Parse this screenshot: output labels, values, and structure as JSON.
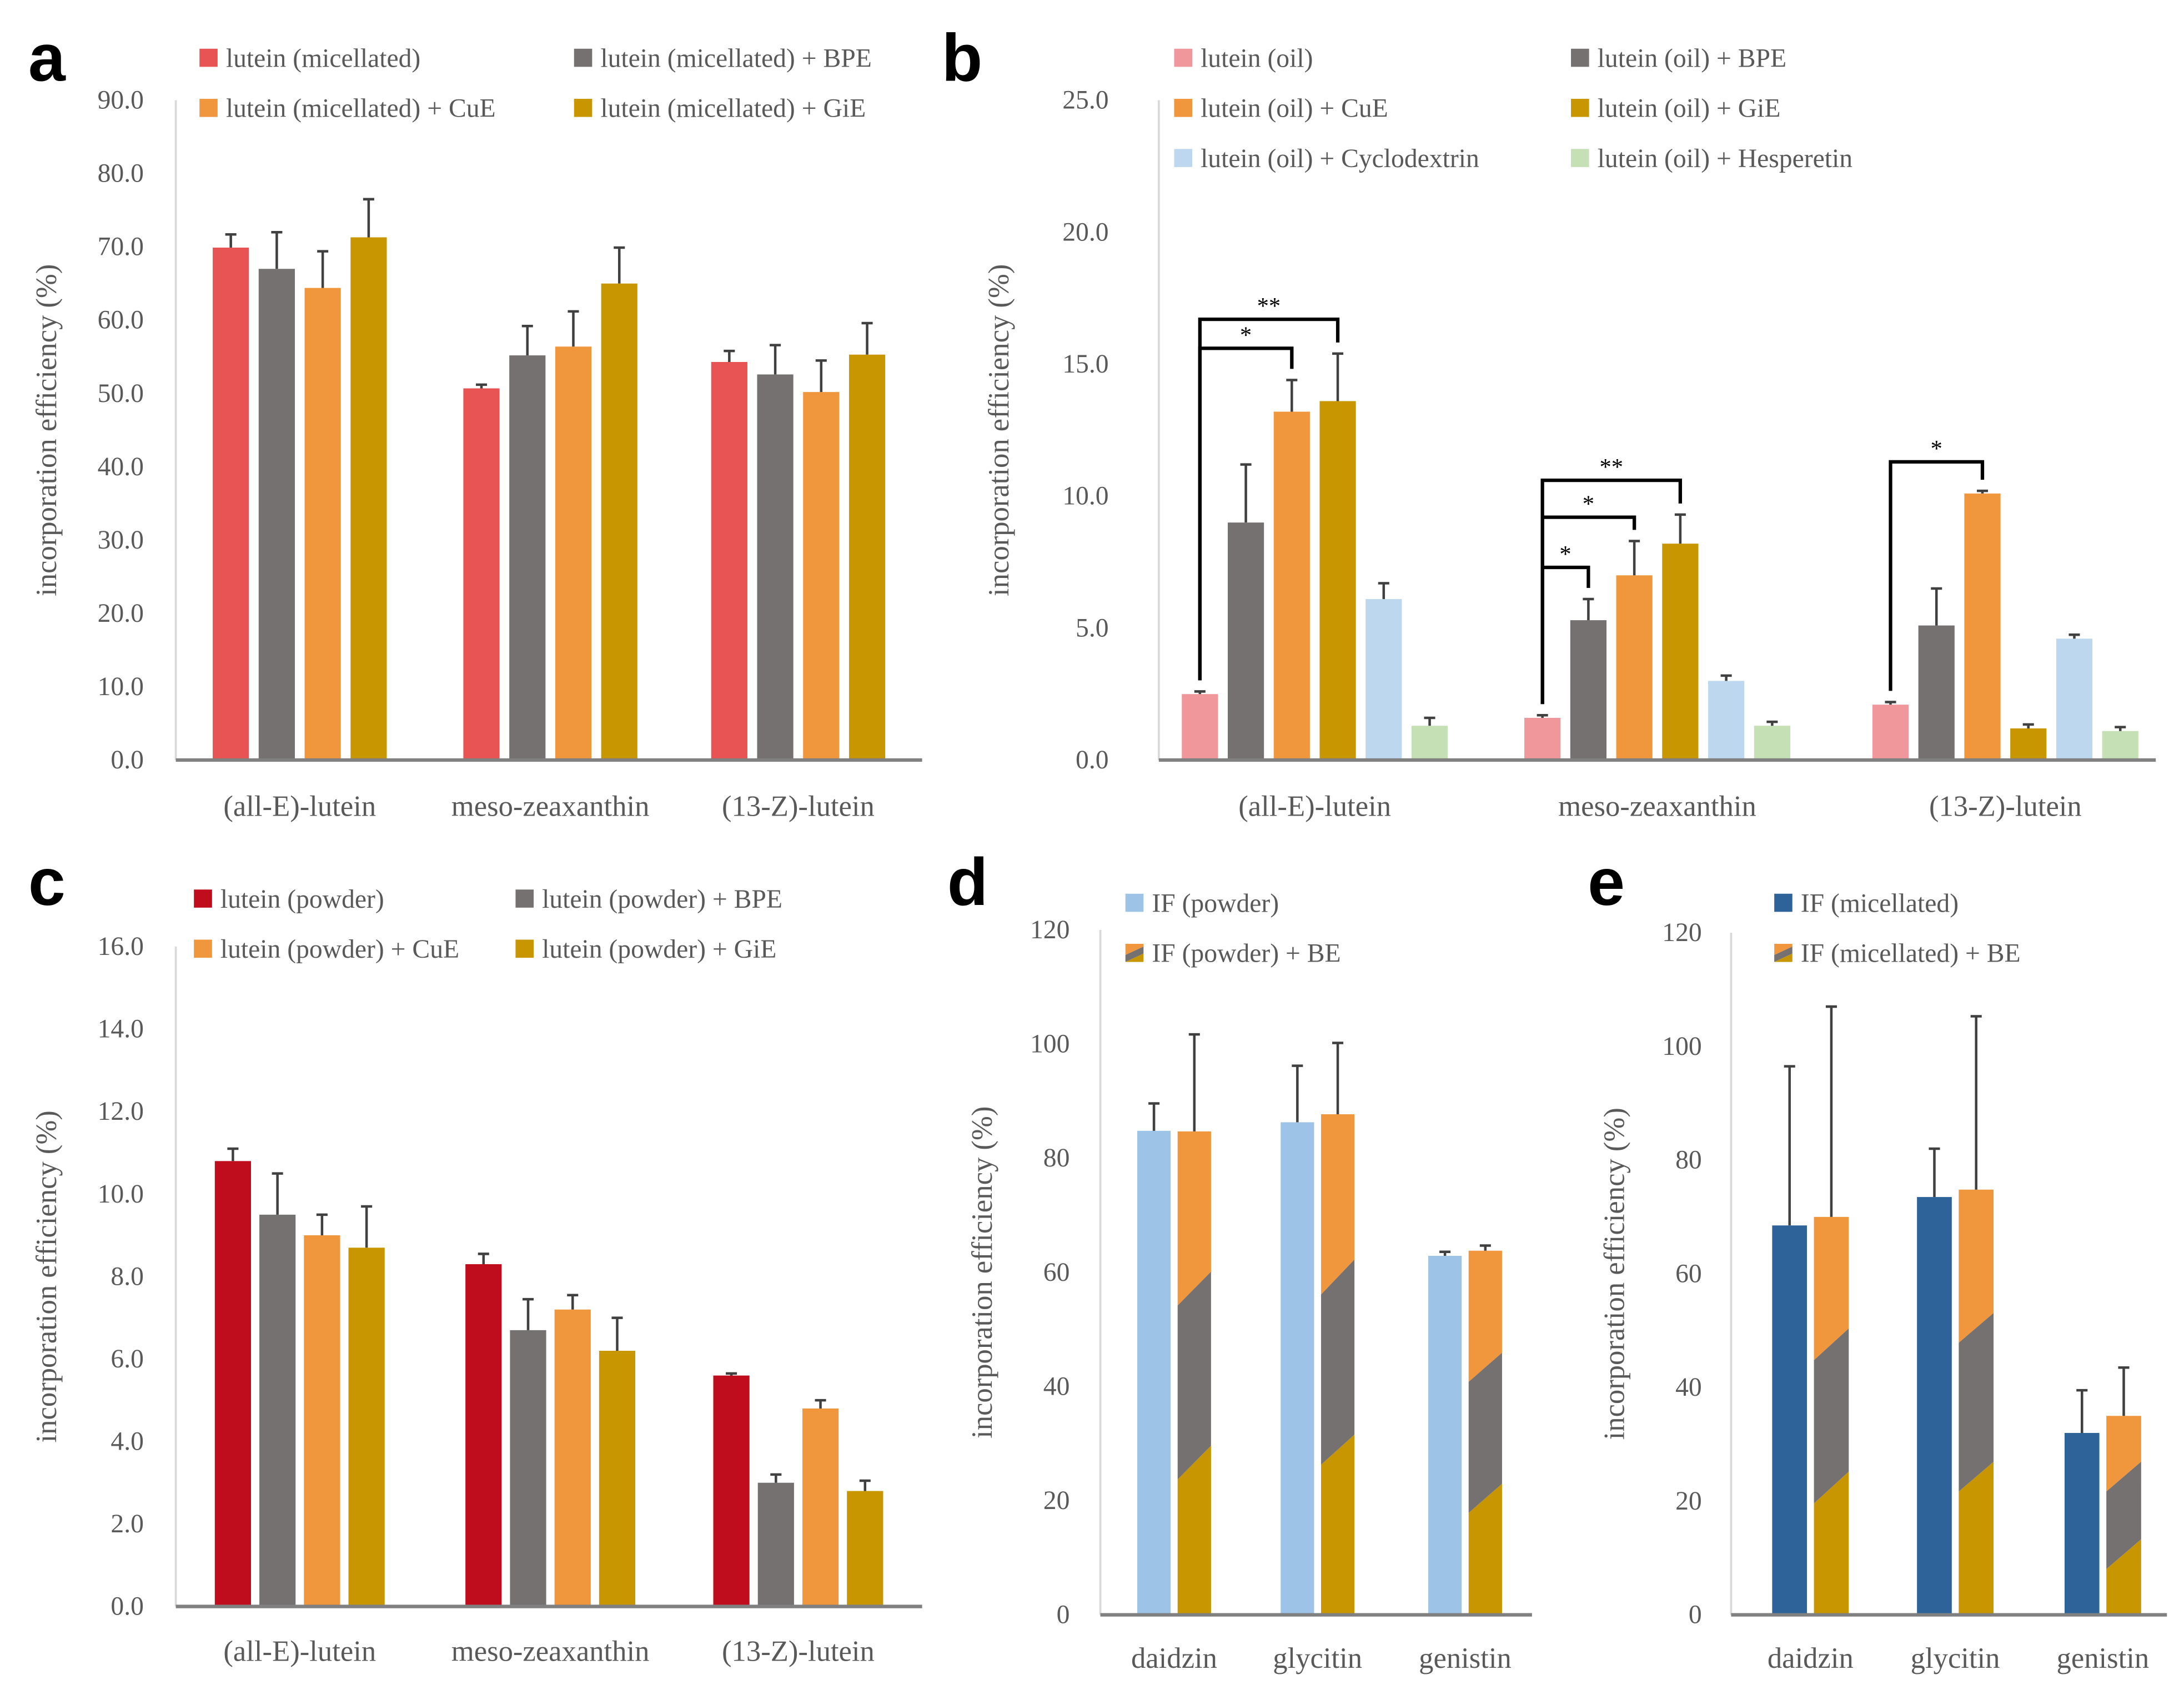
{
  "chart_data": [
    {
      "panel": "a",
      "type": "bar",
      "ylabel": "incorporation efficiency (%)",
      "ylim": [
        0,
        90
      ],
      "ytick_step": 10,
      "ytick_decimals": 1,
      "categories": [
        "(all-E)-lutein",
        "meso-zeaxanthin",
        "(13-Z)-lutein"
      ],
      "legend_placement": "top",
      "series": [
        {
          "name": "lutein (micellated)",
          "color": "#e85353",
          "values": [
            69.9,
            50.7,
            54.3
          ],
          "errors": [
            1.8,
            0.5,
            1.5
          ]
        },
        {
          "name": "lutein (micellated) + BPE",
          "color": "#767171",
          "values": [
            67.0,
            55.2,
            52.6
          ],
          "errors": [
            5.0,
            4.0,
            4.0
          ]
        },
        {
          "name": "lutein (micellated) + CuE",
          "color": "#f0963c",
          "values": [
            64.4,
            56.4,
            50.2
          ],
          "errors": [
            5.0,
            4.8,
            4.3
          ]
        },
        {
          "name": "lutein (micellated) + GiE",
          "color": "#c89600",
          "values": [
            71.3,
            65.0,
            55.3
          ],
          "errors": [
            5.2,
            4.9,
            4.3
          ]
        }
      ]
    },
    {
      "panel": "b",
      "type": "bar",
      "ylabel": "incorporation efficiency (%)",
      "ylim": [
        0,
        25
      ],
      "ytick_step": 5,
      "ytick_decimals": 1,
      "categories": [
        "(all-E)-lutein",
        "meso-zeaxanthin",
        "(13-Z)-lutein"
      ],
      "legend_placement": "top",
      "series": [
        {
          "name": "lutein (oil)",
          "color": "#f0979b",
          "values": [
            2.5,
            1.6,
            2.1
          ],
          "errors": [
            0.1,
            0.1,
            0.1
          ]
        },
        {
          "name": "lutein (oil) + BPE",
          "color": "#767171",
          "values": [
            9.0,
            5.3,
            5.1
          ],
          "errors": [
            2.2,
            0.8,
            1.4
          ]
        },
        {
          "name": "lutein (oil) + CuE",
          "color": "#f0963c",
          "values": [
            13.2,
            7.0,
            10.1
          ],
          "errors": [
            1.2,
            1.3,
            0.1
          ]
        },
        {
          "name": "lutein (oil) + GiE",
          "color": "#c89600",
          "values": [
            13.6,
            8.2,
            1.2
          ],
          "errors": [
            1.8,
            1.1,
            0.15
          ]
        },
        {
          "name": "lutein (oil) + Cyclodextrin",
          "color": "#bdd7ee",
          "values": [
            6.1,
            3.0,
            4.6
          ],
          "errors": [
            0.6,
            0.2,
            0.15
          ]
        },
        {
          "name": "lutein (oil) + Hesperetin",
          "color": "#c5e0b4",
          "values": [
            1.3,
            1.3,
            1.1
          ],
          "errors": [
            0.3,
            0.15,
            0.15
          ]
        }
      ],
      "significance": [
        {
          "category": 0,
          "from": 0,
          "to": 2,
          "label": "*",
          "y": 15.6
        },
        {
          "category": 0,
          "from": 0,
          "to": 3,
          "label": "**",
          "y": 16.7
        },
        {
          "category": 1,
          "from": 0,
          "to": 1,
          "label": "*",
          "y": 7.3
        },
        {
          "category": 1,
          "from": 0,
          "to": 2,
          "label": "*",
          "y": 9.2
        },
        {
          "category": 1,
          "from": 0,
          "to": 3,
          "label": "**",
          "y": 10.6
        },
        {
          "category": 2,
          "from": 0,
          "to": 2,
          "label": "*",
          "y": 11.3
        }
      ]
    },
    {
      "panel": "c",
      "type": "bar",
      "ylabel": "incorporation efficiency (%)",
      "ylim": [
        0,
        16
      ],
      "ytick_step": 2,
      "ytick_decimals": 1,
      "categories": [
        "(all-E)-lutein",
        "meso-zeaxanthin",
        "(13-Z)-lutein"
      ],
      "legend_placement": "top",
      "series": [
        {
          "name": "lutein (powder)",
          "color": "#c00d1e",
          "values": [
            10.8,
            8.3,
            5.6
          ],
          "errors": [
            0.3,
            0.25,
            0.05
          ]
        },
        {
          "name": "lutein (powder) + BPE",
          "color": "#767171",
          "values": [
            9.5,
            6.7,
            3.0
          ],
          "errors": [
            1.0,
            0.75,
            0.2
          ]
        },
        {
          "name": "lutein (powder) + CuE",
          "color": "#f0963c",
          "values": [
            9.0,
            7.2,
            4.8
          ],
          "errors": [
            0.5,
            0.35,
            0.2
          ]
        },
        {
          "name": "lutein (powder) + GiE",
          "color": "#c89600",
          "values": [
            8.7,
            6.2,
            2.8
          ],
          "errors": [
            1.0,
            0.8,
            0.25
          ]
        }
      ]
    },
    {
      "panel": "d",
      "type": "bar",
      "ylabel": "incorporation efficiency (%)",
      "ylim": [
        0,
        120
      ],
      "ytick_step": 20,
      "ytick_decimals": 0,
      "categories": [
        "daidzin",
        "glycitin",
        "genistin"
      ],
      "legend_placement": "top",
      "series": [
        {
          "name": "IF (powder)",
          "color": "#9dc3e6",
          "values": [
            84.8,
            86.3,
            62.9
          ],
          "errors": [
            4.8,
            9.9,
            0.7
          ]
        },
        {
          "name": "IF (powder) + BE",
          "striped_colors": [
            "#c89600",
            "#767171",
            "#f0963c"
          ],
          "values": [
            84.7,
            87.7,
            63.8
          ],
          "errors": [
            17.0,
            12.5,
            0.9
          ]
        }
      ]
    },
    {
      "panel": "e",
      "type": "bar",
      "ylabel": "incorporation efficiency (%)",
      "ylim": [
        0,
        120
      ],
      "ytick_step": 20,
      "ytick_decimals": 0,
      "categories": [
        "daidzin",
        "glycitin",
        "genistin"
      ],
      "legend_placement": "top",
      "series": [
        {
          "name": "IF (micellated)",
          "color": "#2e6399",
          "values": [
            68.5,
            73.5,
            32.0
          ],
          "errors": [
            28.0,
            8.5,
            7.5
          ]
        },
        {
          "name": "IF (micellated) + BE",
          "striped_colors": [
            "#c89600",
            "#767171",
            "#f0963c"
          ],
          "values": [
            70.0,
            74.8,
            35.0
          ],
          "errors": [
            37.0,
            30.5,
            8.5
          ]
        }
      ]
    }
  ]
}
